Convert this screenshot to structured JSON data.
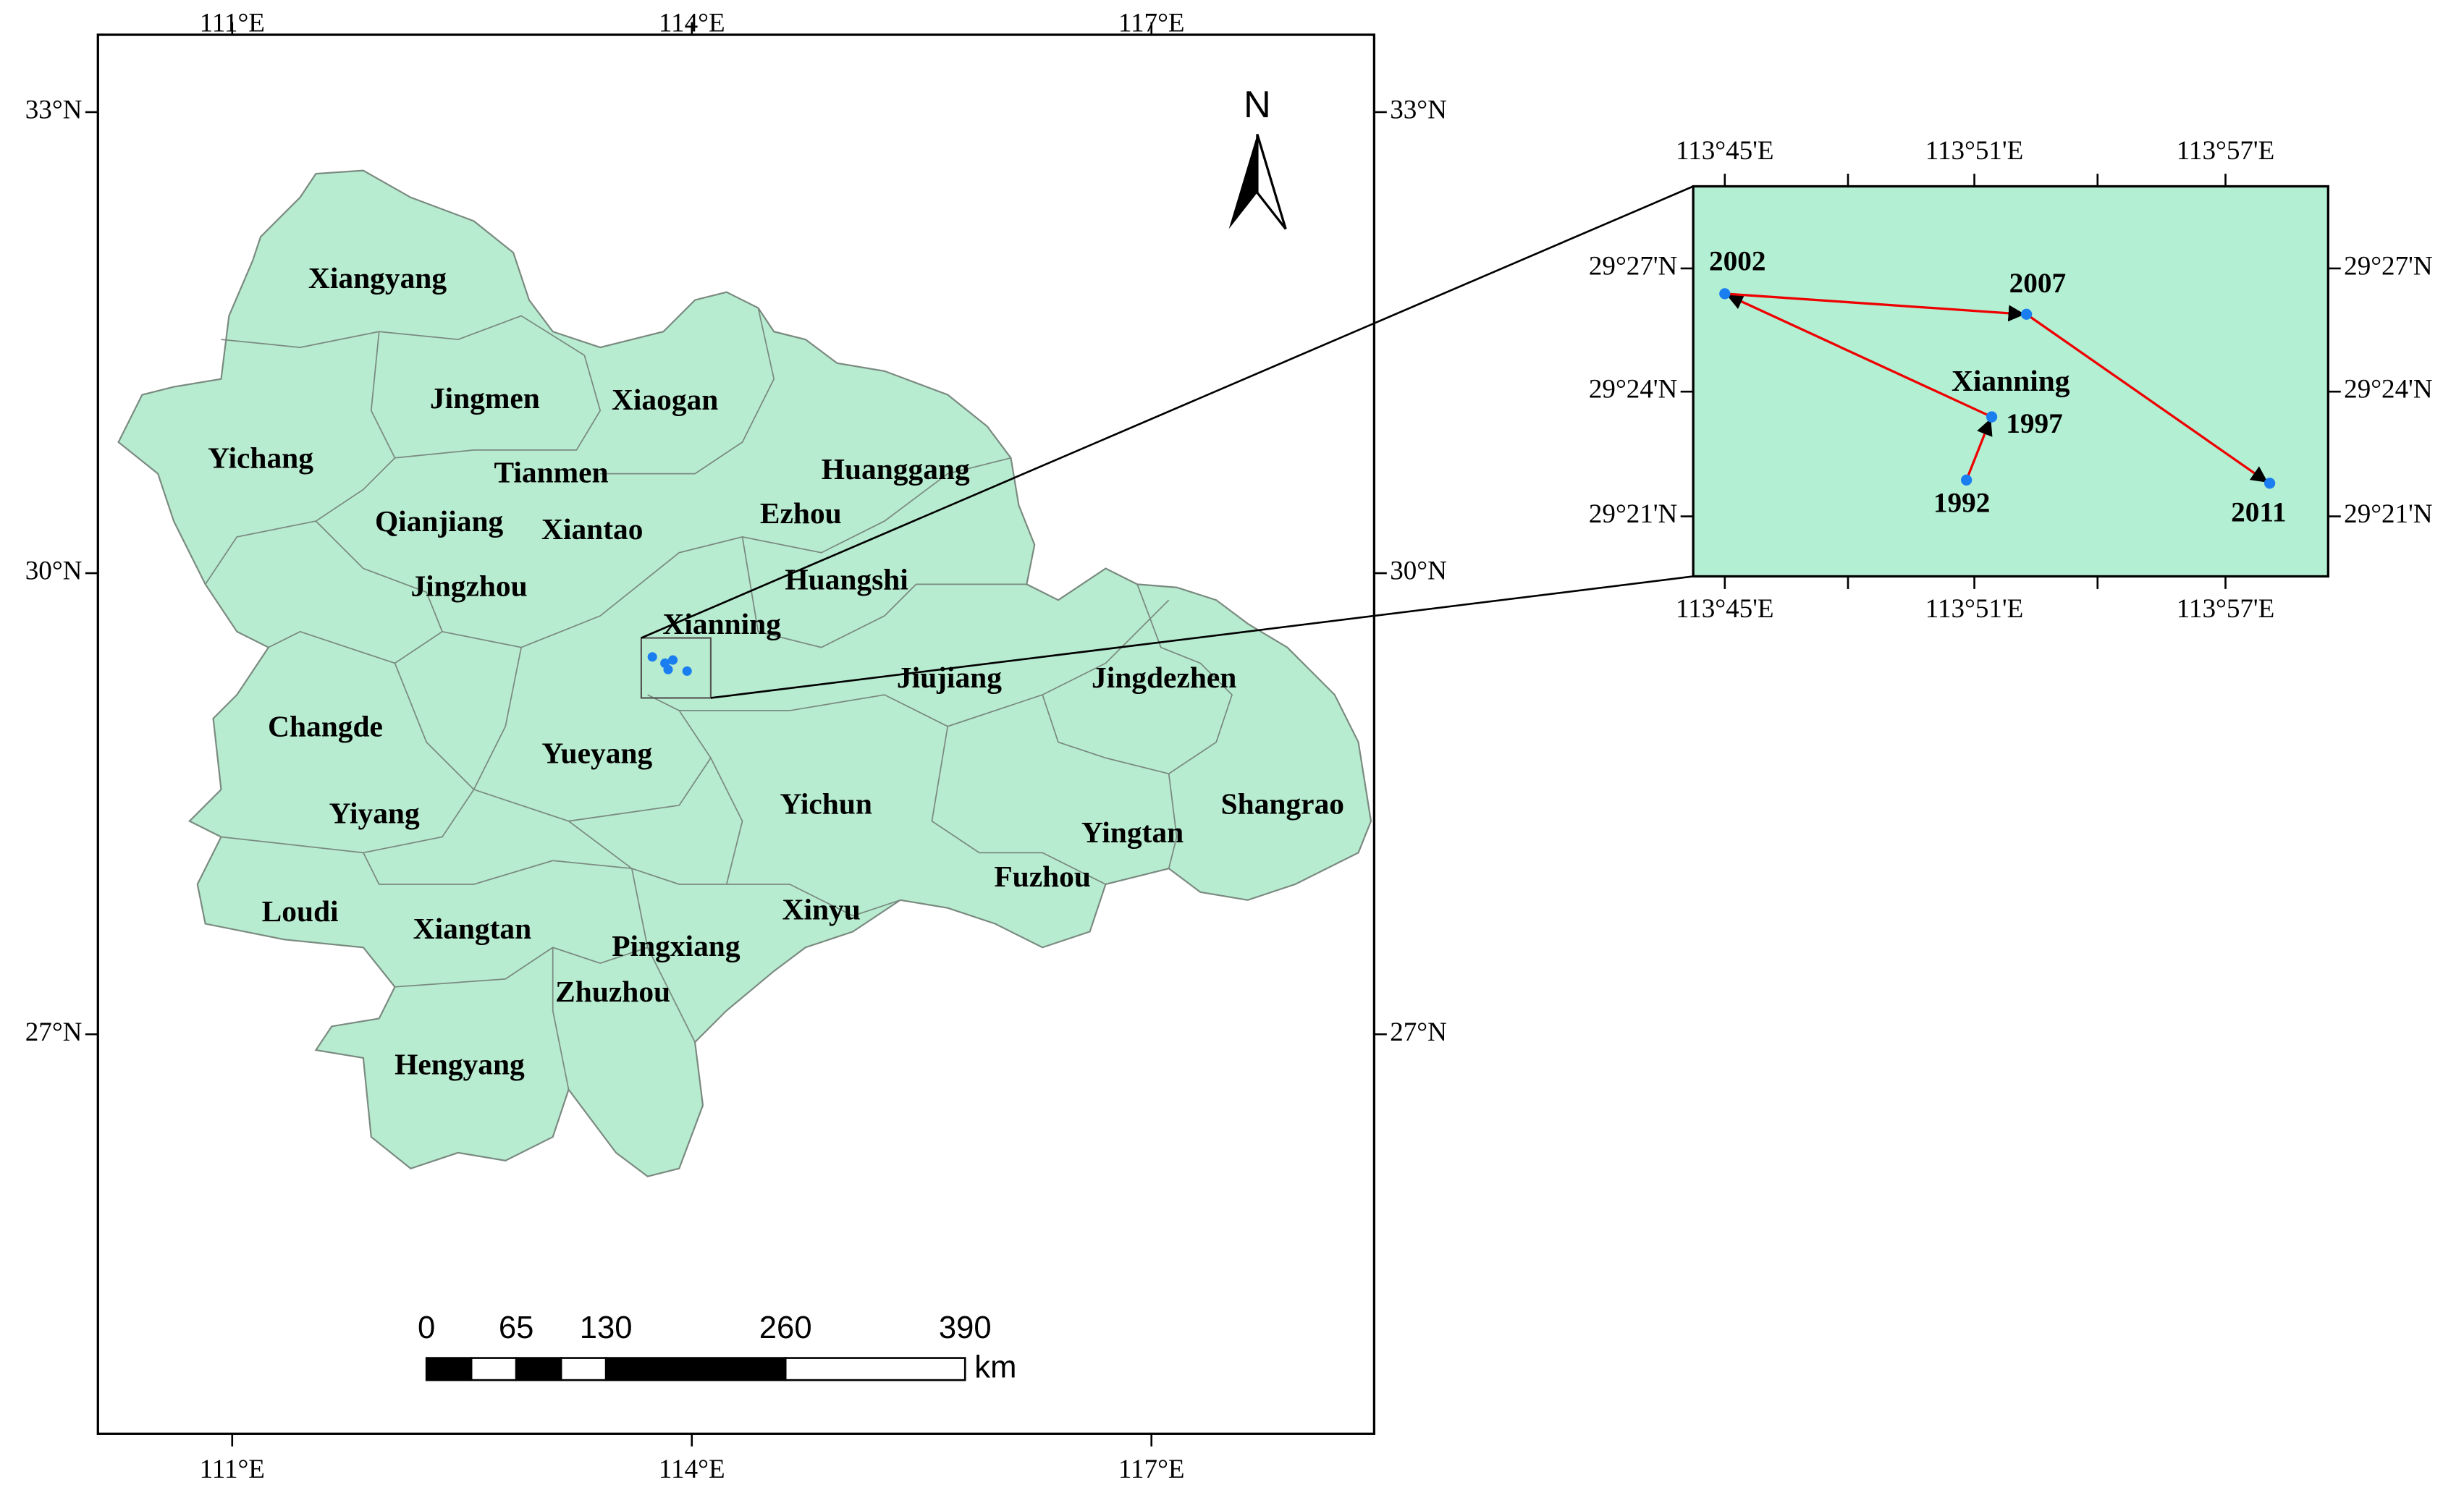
{
  "main_map": {
    "north_label": "N",
    "top_ticks": [
      "111°E",
      "114°E",
      "117°E"
    ],
    "bottom_ticks": [
      "111°E",
      "114°E",
      "117°E"
    ],
    "left_ticks": [
      "33°N",
      "30°N",
      "27°N"
    ],
    "right_ticks": [
      "33°N",
      "30°N",
      "27°N"
    ],
    "cities": [
      "Xiangyang",
      "Jingmen",
      "Xiaogan",
      "Yichang",
      "Tianmen",
      "Huanggang",
      "Ezhou",
      "Qianjiang",
      "Xiantao",
      "Jingzhou",
      "Huangshi",
      "Xianning",
      "Jiujiang",
      "Jingdezhen",
      "Changde",
      "Yueyang",
      "Yichun",
      "Shangrao",
      "Yiyang",
      "Yingtan",
      "Fuzhou",
      "Loudi",
      "Xinyu",
      "Xiangtan",
      "Pingxiang",
      "Zhuzhou",
      "Hengyang"
    ],
    "scale_bar": {
      "labels": [
        0,
        65,
        130,
        260,
        390
      ],
      "unit": "km"
    }
  },
  "inset": {
    "top_ticks": [
      "113°45'E",
      "113°51'E",
      "113°57'E"
    ],
    "bottom_ticks": [
      "113°45'E",
      "113°51'E",
      "113°57'E"
    ],
    "left_ticks": [
      "29°27'N",
      "29°24'N",
      "29°21'N"
    ],
    "right_ticks": [
      "29°27'N",
      "29°24'N",
      "29°21'N"
    ],
    "location_label": "Xianning",
    "years": [
      "1992",
      "1997",
      "2002",
      "2007",
      "2011"
    ]
  }
}
